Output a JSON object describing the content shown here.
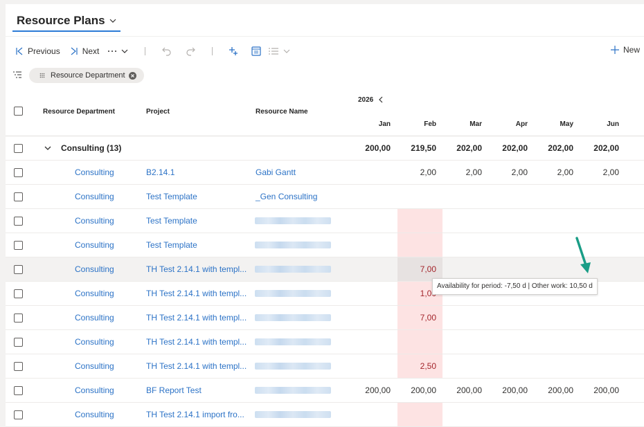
{
  "header": {
    "title": "Resource Plans"
  },
  "toolbar": {
    "previous_label": "Previous",
    "next_label": "Next",
    "new_label": "New"
  },
  "filter": {
    "chip_label": "Resource Department"
  },
  "grid": {
    "year": "2026",
    "columns": {
      "department": "Resource Department",
      "project": "Project",
      "resource": "Resource Name",
      "months": [
        "Jan",
        "Feb",
        "Mar",
        "Apr",
        "May",
        "Jun"
      ]
    },
    "group": {
      "label": "Consulting (13)",
      "totals": [
        "",
        "200,00",
        "219,50",
        "202,00",
        "202,00",
        "202,00",
        "202,00"
      ]
    },
    "rows": [
      {
        "department": "Consulting",
        "project": "B2.14.1",
        "resource": "Gabi Gantt",
        "values": [
          "",
          "2,00",
          "2,00",
          "2,00",
          "2,00",
          "2,00"
        ],
        "feb_over": false
      },
      {
        "department": "Consulting",
        "project": "Test Template",
        "resource": "_Gen Consulting",
        "values": [
          "",
          "",
          "",
          "",
          "",
          ""
        ],
        "feb_over": false
      },
      {
        "department": "Consulting",
        "project": "Test Template",
        "resource": "",
        "values": [
          "",
          "",
          "",
          "",
          "",
          ""
        ],
        "feb_over": true
      },
      {
        "department": "Consulting",
        "project": "Test Template",
        "resource": "",
        "values": [
          "",
          "",
          "",
          "",
          "",
          ""
        ],
        "feb_over": true
      },
      {
        "department": "Consulting",
        "project": "TH Test 2.14.1 with templ...",
        "resource": "",
        "values": [
          "",
          "7,00",
          "",
          "",
          "",
          ""
        ],
        "feb_over": true
      },
      {
        "department": "Consulting",
        "project": "TH Test 2.14.1 with templ...",
        "resource": "",
        "values": [
          "",
          "1,00",
          "",
          "",
          "",
          ""
        ],
        "feb_over": true
      },
      {
        "department": "Consulting",
        "project": "TH Test 2.14.1 with templ...",
        "resource": "",
        "values": [
          "",
          "7,00",
          "",
          "",
          "",
          ""
        ],
        "feb_over": true
      },
      {
        "department": "Consulting",
        "project": "TH Test 2.14.1 with templ...",
        "resource": "",
        "values": [
          "",
          "",
          "",
          "",
          "",
          ""
        ],
        "feb_over": true
      },
      {
        "department": "Consulting",
        "project": "TH Test 2.14.1 with templ...",
        "resource": "",
        "values": [
          "",
          "2,50",
          "",
          "",
          "",
          ""
        ],
        "feb_over": true
      },
      {
        "department": "Consulting",
        "project": "BF Report Test",
        "resource": "",
        "values": [
          "200,00",
          "200,00",
          "200,00",
          "200,00",
          "200,00",
          "200,00"
        ],
        "feb_over": false
      },
      {
        "department": "Consulting",
        "project": "TH Test 2.14.1 import fro...",
        "resource": "",
        "values": [
          "",
          "",
          "",
          "",
          "",
          ""
        ],
        "feb_over": true
      }
    ]
  },
  "tooltip": {
    "text": "Availability for period: -7,50 d | Other work: 10,50 d"
  },
  "colors": {
    "link": "#2b72c6",
    "accent": "#2b7bd6",
    "overbooked_bg": "#fde3e3",
    "overbooked_text": "#a4262c",
    "arrow": "#1a9d86"
  }
}
